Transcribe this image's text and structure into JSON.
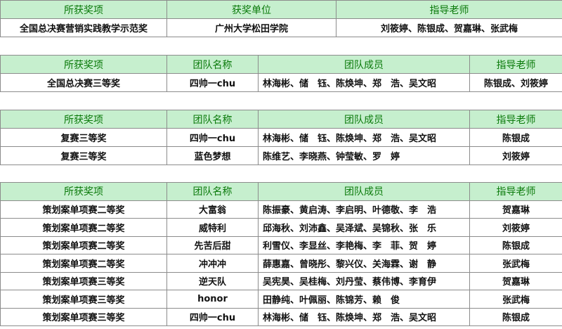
{
  "table1": {
    "headers": [
      "所获奖项",
      "获奖单位",
      "指导老师"
    ],
    "row": [
      "全国总决赛营销实践教学示范奖",
      "广州大学松田学院",
      "刘筱婷、陈银成、贺嘉琳、张武梅"
    ]
  },
  "team_headers": [
    "所获奖项",
    "团队名称",
    "团队成员",
    "指导老师"
  ],
  "table2": {
    "rows": [
      [
        "全国总决赛三等奖",
        "四帅一chu",
        "林海彬、储　钰、陈焕坤、郑　浩、吴文昭",
        "陈银成、刘筱婷"
      ]
    ]
  },
  "table3": {
    "rows": [
      [
        "复赛三等奖",
        "四帅一chu",
        "林海彬、储　钰、陈焕坤、郑　浩、吴文昭",
        "陈银成"
      ],
      [
        "复赛三等奖",
        "蓝色梦想",
        "陈维艺、李晓燕、钟莹敏、罗　婷",
        "刘筱婷"
      ]
    ]
  },
  "table4": {
    "rows": [
      [
        "策划案单项赛二等奖",
        "大富翁",
        "陈振豪、黄启涛、李启明、叶德敬、李　浩",
        "贺嘉琳"
      ],
      [
        "策划案单项赛二等奖",
        "威特利",
        "邱海秋、刘沛鑫、吴泽斌、吴锦秋、张　乐",
        "刘筱婷"
      ],
      [
        "策划案单项赛二等奖",
        "先苦后甜",
        "利雪仪、李显丝、李艳梅、李　菲、贺　婷",
        "陈银成"
      ],
      [
        "策划案单项赛二等奖",
        "冲冲冲",
        "薛惠嘉、曾晓彤、黎兴仪、关海霖、谢　静",
        "张武梅"
      ],
      [
        "策划案单项赛三等奖",
        "逆天队",
        "吴宪昊、吴桂梅、刘丹莹、蔡伟博、李育伊",
        "贺嘉琳"
      ],
      [
        "策划案单项赛三等奖",
        "honor",
        "田静纯、叶佩丽、陈锦芳、赖　俊",
        "张武梅"
      ],
      [
        "策划案单项赛三等奖",
        "四帅一chu",
        "林海彬、储　钰、陈焕坤、郑　浩、吴文昭",
        "陈银成"
      ]
    ]
  },
  "colors": {
    "header_bg": "#c6efce",
    "header_text": "#0a7a0a",
    "border": "#8c8c8c"
  }
}
